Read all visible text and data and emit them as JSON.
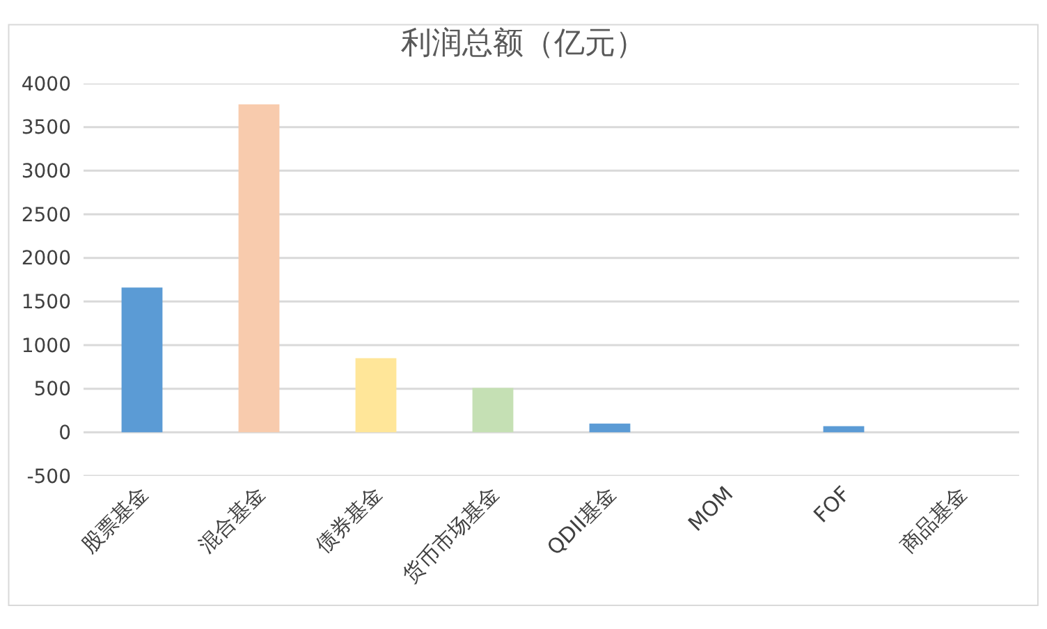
{
  "chart_data": {
    "type": "bar",
    "title": "利润总额（亿元）",
    "categories": [
      "股票基金",
      "混合基金",
      "债券基金",
      "货币市场基金",
      "QDII基金",
      "MOM",
      "FOF",
      "商品基金"
    ],
    "values": [
      1660,
      3760,
      850,
      510,
      100,
      0,
      70,
      0
    ],
    "colors": [
      "#5b9bd5",
      "#f8cbad",
      "#ffe699",
      "#c5e0b4",
      "#5b9bd5",
      "#5b9bd5",
      "#5b9bd5",
      "#5b9bd5"
    ],
    "ylim": [
      -500,
      4000
    ],
    "yticks": [
      -500,
      0,
      500,
      1000,
      1500,
      2000,
      2500,
      3000,
      3500,
      4000
    ],
    "grid": "y"
  }
}
